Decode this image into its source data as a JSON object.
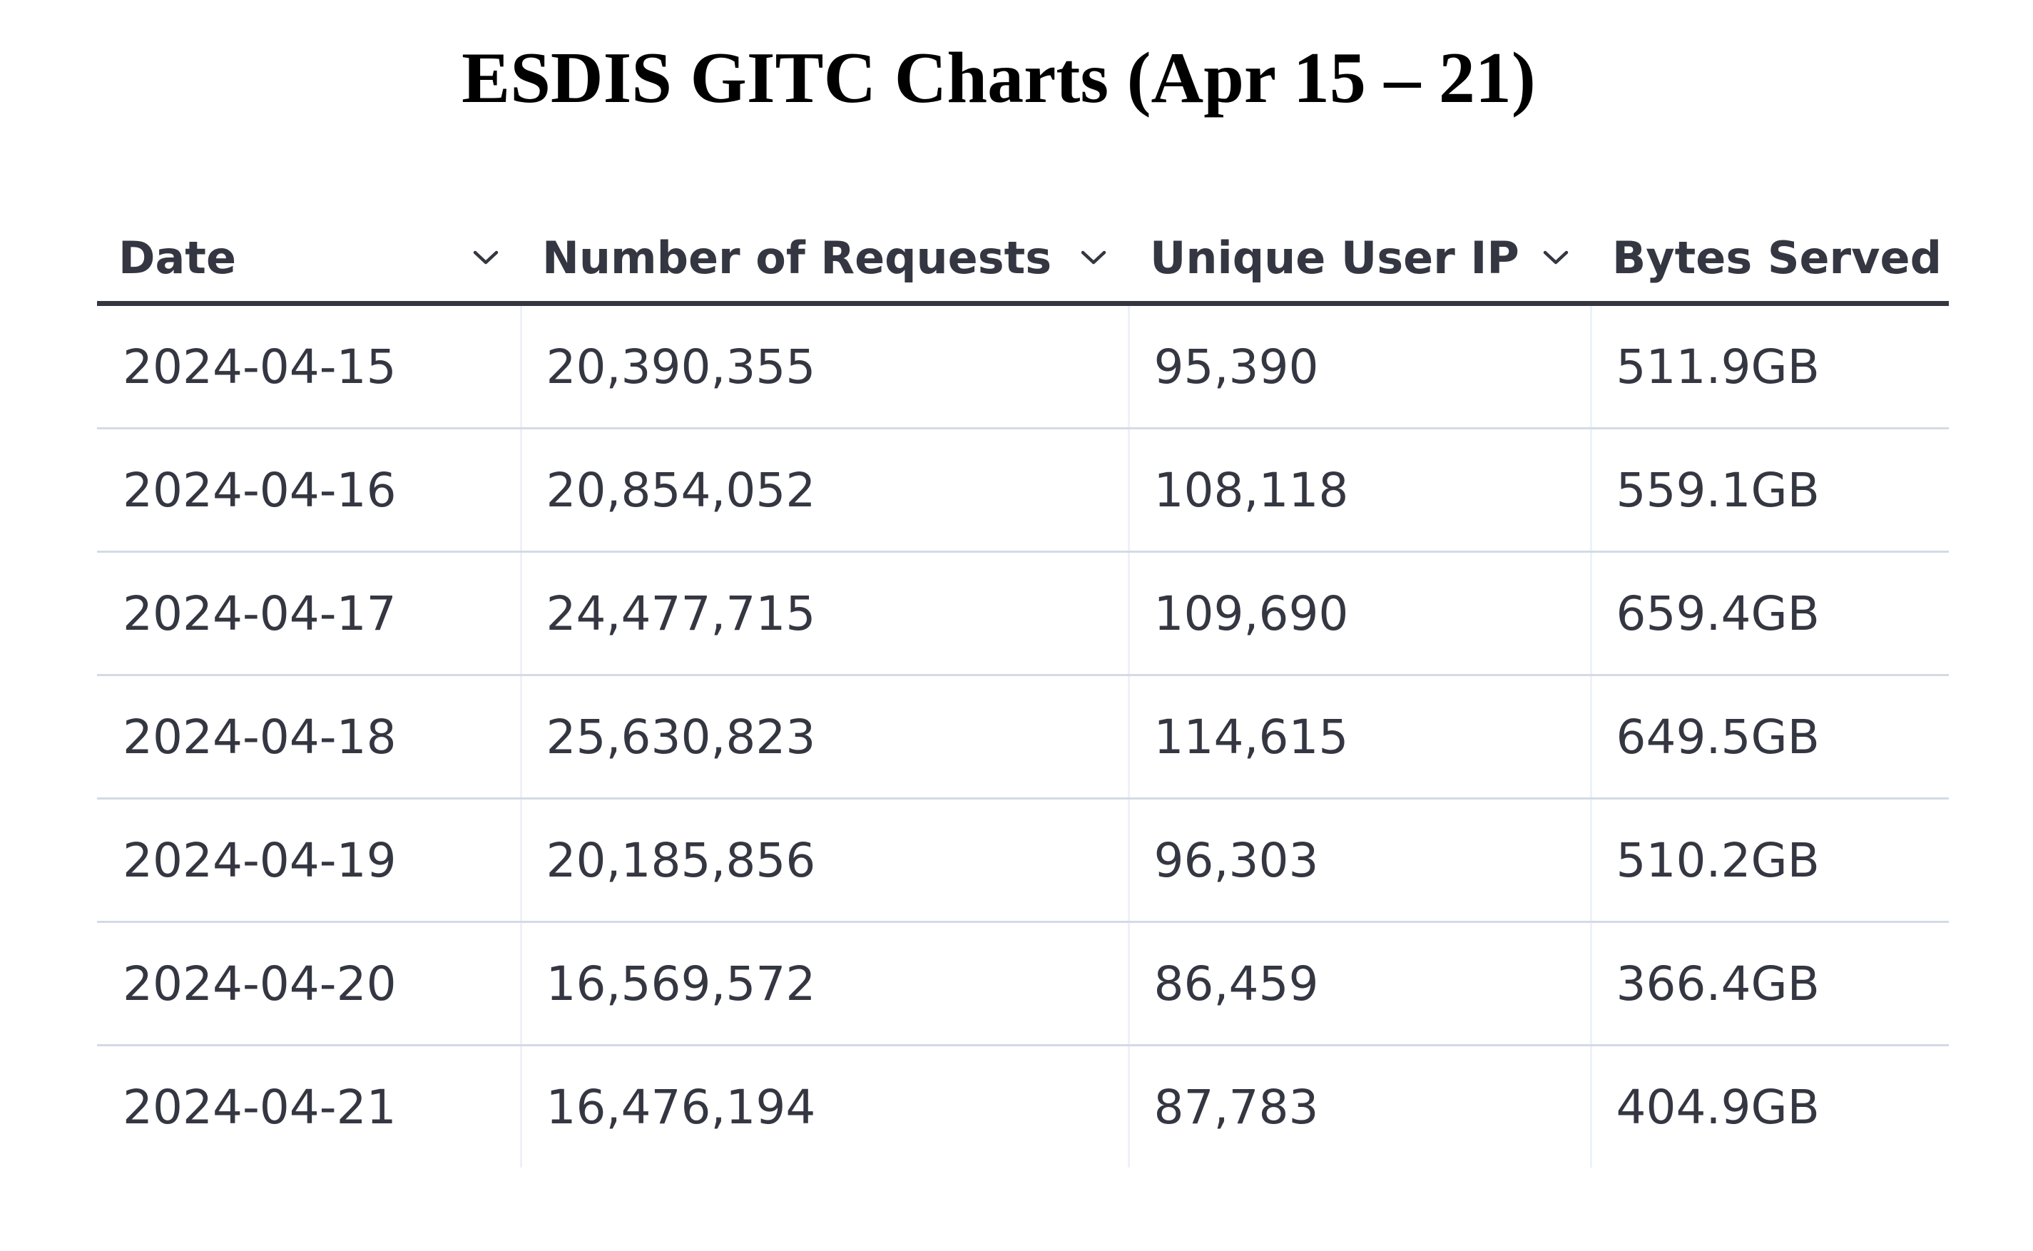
{
  "title": "ESDIS GITC Charts (Apr 15 – 21)",
  "table": {
    "columns": [
      {
        "label": "Date",
        "sortable": true
      },
      {
        "label": "Number of Requests",
        "sortable": true
      },
      {
        "label": "Unique User IP",
        "sortable": true
      },
      {
        "label": "Bytes Served",
        "sortable": false
      }
    ],
    "rows": [
      {
        "date": "2024-04-15",
        "requests": "20,390,355",
        "unique_ip": "95,390",
        "bytes": "511.9GB"
      },
      {
        "date": "2024-04-16",
        "requests": "20,854,052",
        "unique_ip": "108,118",
        "bytes": "559.1GB"
      },
      {
        "date": "2024-04-17",
        "requests": "24,477,715",
        "unique_ip": "109,690",
        "bytes": "659.4GB"
      },
      {
        "date": "2024-04-18",
        "requests": "25,630,823",
        "unique_ip": "114,615",
        "bytes": "649.5GB"
      },
      {
        "date": "2024-04-19",
        "requests": "20,185,856",
        "unique_ip": "96,303",
        "bytes": "510.2GB"
      },
      {
        "date": "2024-04-20",
        "requests": "16,569,572",
        "unique_ip": "86,459",
        "bytes": "366.4GB"
      },
      {
        "date": "2024-04-21",
        "requests": "16,476,194",
        "unique_ip": "87,783",
        "bytes": "404.9GB"
      }
    ]
  },
  "icons": {
    "sort": "chevron-down-icon"
  },
  "colors": {
    "text": "#343741",
    "header_rule": "#343741",
    "row_rule": "#d3dae6",
    "title": "#000000"
  }
}
